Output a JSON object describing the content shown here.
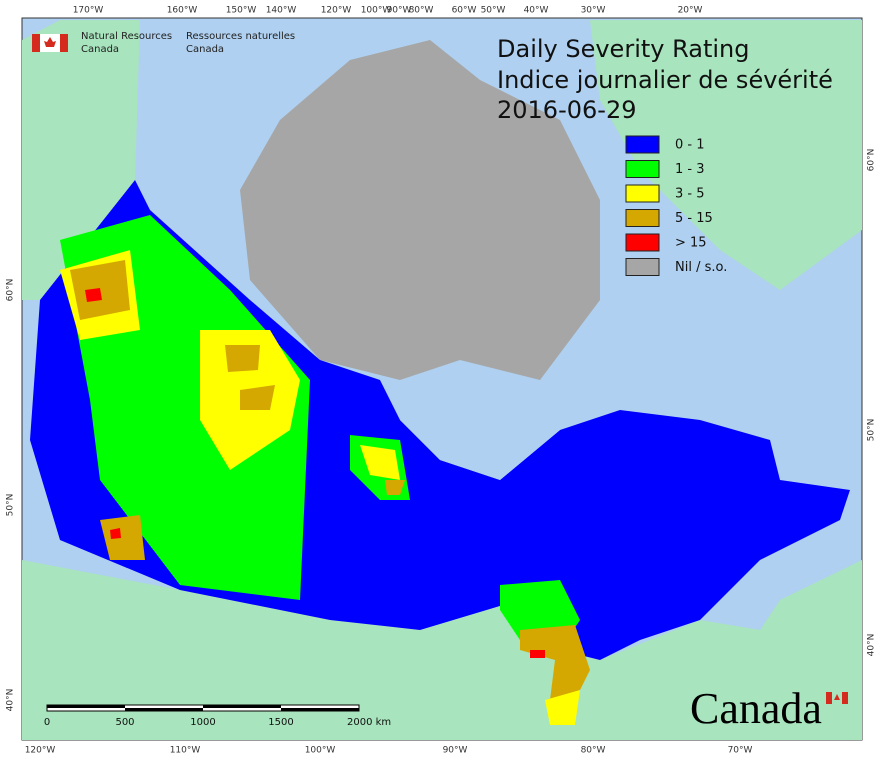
{
  "header": {
    "agency_en_1": "Natural Resources",
    "agency_en_2": "Canada",
    "agency_fr_1": "Ressources naturelles",
    "agency_fr_2": "Canada"
  },
  "title": {
    "line1": "Daily Severity Rating",
    "line2": "Indice journalier de sévérité",
    "date": "2016-06-29"
  },
  "legend": [
    {
      "label": "0 - 1",
      "color": "#0000ff"
    },
    {
      "label": "1 - 3",
      "color": "#00ff00"
    },
    {
      "label": "3 - 5",
      "color": "#ffff00"
    },
    {
      "label": "5 - 15",
      "color": "#d4a800"
    },
    {
      "label": "> 15",
      "color": "#ff0000"
    },
    {
      "label": "Nil / s.o.",
      "color": "#a6a6a6"
    }
  ],
  "graticule": {
    "top": [
      "170°W",
      "160°W",
      "150°W",
      "140°W",
      "120°W",
      "100°W",
      "90°W",
      "80°W",
      "60°W",
      "50°W",
      "40°W",
      "30°W",
      "20°W"
    ],
    "bottom": [
      "120°W",
      "110°W",
      "100°W",
      "90°W",
      "80°W",
      "70°W"
    ],
    "left": [
      "60°N",
      "50°N",
      "40°N"
    ],
    "right": [
      "60°N",
      "50°N",
      "40°N"
    ]
  },
  "scale_bar": {
    "labels": [
      "0",
      "500",
      "1000",
      "1500",
      "2000 km"
    ]
  },
  "wordmark": "Canada"
}
